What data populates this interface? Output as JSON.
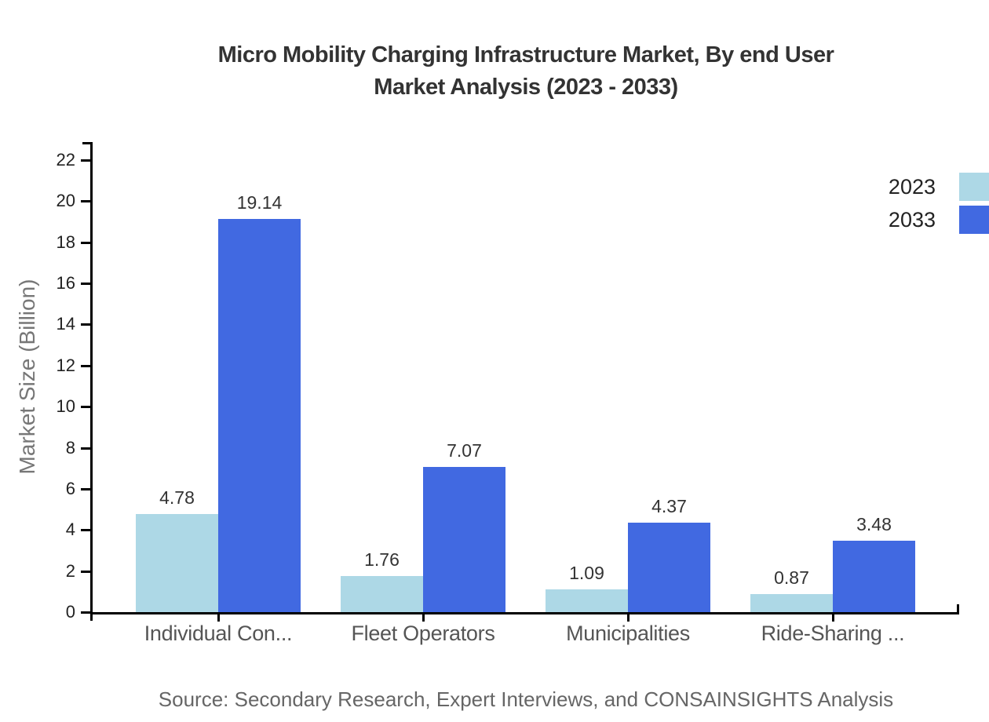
{
  "title": {
    "line1": "Micro Mobility Charging Infrastructure Market, By end User",
    "line2": "Market Analysis (2023 - 2033)"
  },
  "source_note": "Source: Secondary Research, Expert Interviews, and CONSAINSIGHTS Analysis",
  "colors": {
    "series_2023": "#ADD8E6",
    "series_2033": "#4169E1",
    "axis": "#000000",
    "title_text": "#333333",
    "tick_label": "#222222",
    "category_label": "#555555",
    "axis_title": "#777777",
    "source_text": "#666666"
  },
  "chart_data": {
    "type": "bar",
    "title": "Micro Mobility Charging Infrastructure Market, By end User Market Analysis (2023 - 2033)",
    "categories": [
      "Individual Con...",
      "Fleet Operators",
      "Municipalities",
      "Ride-Sharing ..."
    ],
    "series": [
      {
        "name": "2023",
        "color": "#ADD8E6",
        "values": [
          4.78,
          1.76,
          1.09,
          0.87
        ]
      },
      {
        "name": "2033",
        "color": "#4169E1",
        "values": [
          19.14,
          7.07,
          4.37,
          3.48
        ]
      }
    ],
    "value_labels": [
      "4.78",
      "19.14",
      "1.76",
      "7.07",
      "1.09",
      "4.37",
      "0.87",
      "3.48"
    ],
    "xlabel": "",
    "ylabel": "Market Size (Billion)",
    "ylim": [
      0,
      22
    ],
    "ytick_step": 2,
    "yticks": [
      0,
      2,
      4,
      6,
      8,
      10,
      12,
      14,
      16,
      18,
      20,
      22
    ],
    "grid": false,
    "legend_position": "top-right",
    "legend_entries": [
      "2023",
      "2033"
    ]
  }
}
